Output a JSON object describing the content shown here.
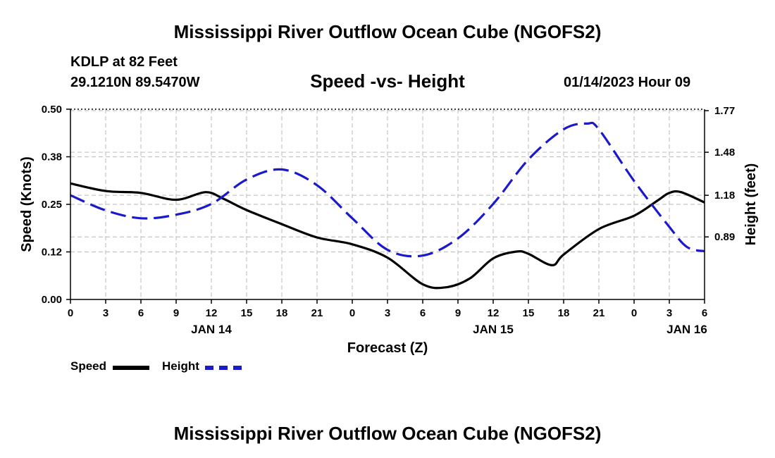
{
  "page": {
    "title_top": "Mississippi River Outflow Ocean Cube (NGOFS2)",
    "title_bottom": "Mississippi River Outflow Ocean Cube (NGOFS2)",
    "station_line": "KDLP at 82 Feet",
    "coords_line": "29.1210N  89.5470W",
    "chart_subtitle": "Speed -vs- Height",
    "datetime": "01/14/2023 Hour 09"
  },
  "legend": [
    {
      "label": "Speed",
      "color": "#000000",
      "style": "solid"
    },
    {
      "label": "Height",
      "color": "#1a1acc",
      "style": "dashed"
    }
  ],
  "chart_data": {
    "type": "line",
    "title": "Speed -vs- Height",
    "xlabel": "Forecast (Z)",
    "ylabel": "Speed (Knots)",
    "y2label": "Height (feet)",
    "x_range": [
      0,
      54
    ],
    "x_ticks": [
      0,
      3,
      6,
      9,
      12,
      15,
      18,
      21,
      24,
      27,
      30,
      33,
      36,
      39,
      42,
      45,
      48,
      51,
      54
    ],
    "x_tick_labels": [
      "0",
      "3",
      "6",
      "9",
      "12",
      "15",
      "18",
      "21",
      "0",
      "3",
      "6",
      "9",
      "12",
      "15",
      "18",
      "21",
      "0",
      "3",
      "6"
    ],
    "date_labels": [
      {
        "x": 12,
        "label": "JAN 14"
      },
      {
        "x": 36,
        "label": "JAN 15"
      },
      {
        "x": 52.5,
        "label": "JAN 16"
      }
    ],
    "ylim": [
      0,
      0.5
    ],
    "y_ticks": [
      0.0,
      0.125,
      0.25,
      0.375,
      0.5
    ],
    "y_tick_labels": [
      "0.00",
      "0.12",
      "0.25",
      "0.38",
      "0.50"
    ],
    "y2lim": [
      0.454,
      1.78
    ],
    "y2_ticks": [
      0.89,
      1.18,
      1.48,
      1.77
    ],
    "y2_tick_labels": [
      "0.89",
      "1.18",
      "1.48",
      "1.77"
    ],
    "grid": true,
    "series": [
      {
        "name": "Speed",
        "axis": "left",
        "color": "#000000",
        "dash": "solid",
        "x": [
          0,
          3,
          6,
          9,
          11.5,
          13,
          15,
          18,
          21,
          24,
          27,
          30,
          32,
          34,
          36,
          38,
          39,
          41,
          42,
          45,
          48,
          50,
          51,
          52,
          54
        ],
        "y": [
          0.305,
          0.285,
          0.28,
          0.262,
          0.282,
          0.265,
          0.235,
          0.198,
          0.163,
          0.145,
          0.11,
          0.04,
          0.032,
          0.055,
          0.108,
          0.126,
          0.12,
          0.09,
          0.118,
          0.185,
          0.22,
          0.26,
          0.28,
          0.282,
          0.255
        ]
      },
      {
        "name": "Height",
        "axis": "right",
        "color": "#1a1acc",
        "dash": "dashed",
        "x": [
          0,
          3,
          6,
          9,
          12,
          15,
          18,
          21,
          24,
          27,
          30,
          33,
          36,
          39,
          42,
          44,
          45,
          48,
          51,
          52.5,
          54
        ],
        "y": [
          1.18,
          1.075,
          1.02,
          1.045,
          1.12,
          1.29,
          1.36,
          1.25,
          1.02,
          0.8,
          0.76,
          0.88,
          1.12,
          1.43,
          1.64,
          1.68,
          1.64,
          1.28,
          0.96,
          0.82,
          0.79
        ]
      }
    ]
  }
}
